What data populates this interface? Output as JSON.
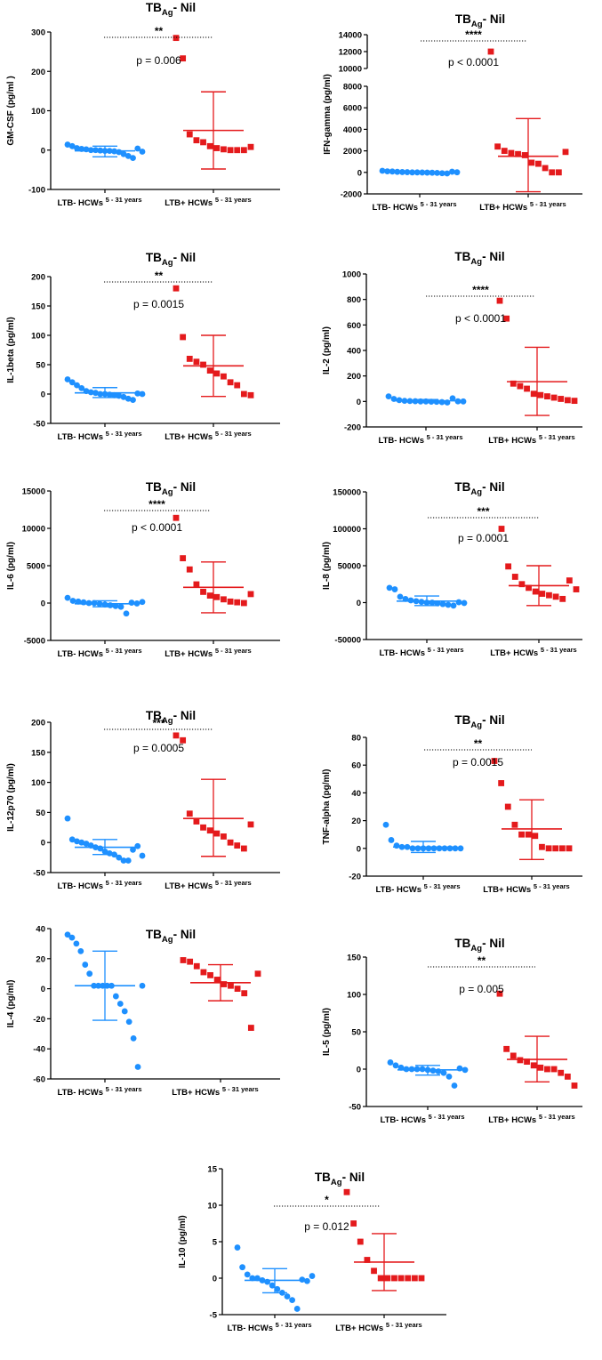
{
  "figure_group_label": "LTB- vs LTB+ HCWs cytokine panels",
  "colors": {
    "ltb_neg": "#1E90FF",
    "ltb_pos": "#E41A1C",
    "axis": "#000000"
  },
  "chart_data": [
    {
      "type": "scatter",
      "title": "TB",
      "title_sub": "Ag",
      "title_suffix": "- Nil",
      "ylabel": "GM-CSF (pg/ml )",
      "ylim": [
        -100,
        300
      ],
      "yticks": [
        -100,
        0,
        100,
        200,
        300
      ],
      "stars": "**",
      "p_text": "p = 0.006",
      "groups": [
        {
          "label": "LTB- HCWs",
          "sup": "5 - 31 years",
          "marker": "circle",
          "mean": -2,
          "sd_low": -17,
          "sd_high": 10,
          "points": [
            14,
            10,
            5,
            3,
            2,
            0,
            0,
            -1,
            -2,
            -2,
            -3,
            -5,
            -10,
            -15,
            -20,
            4,
            -4
          ]
        },
        {
          "label": "LTB+ HCWs",
          "sup": "5 - 31 years",
          "marker": "square",
          "mean": 50,
          "sd_low": -48,
          "sd_high": 148,
          "points": [
            285,
            233,
            40,
            25,
            20,
            10,
            5,
            2,
            0,
            0,
            0,
            8
          ]
        }
      ]
    },
    {
      "type": "scatter",
      "title": "TB",
      "title_sub": "Ag",
      "title_suffix": "- Nil",
      "ylabel": "IFN-gamma (pg/ml)",
      "ylim": [
        -2000,
        14000
      ],
      "yticks": [
        -2000,
        0,
        2000,
        4000,
        6000,
        8000,
        10000,
        12000,
        14000
      ],
      "axis_break": true,
      "stars": "****",
      "p_text": "p < 0.0001",
      "groups": [
        {
          "label": "LTB- HCWs",
          "sup": "5 - 31 years",
          "marker": "circle",
          "mean": 20,
          "sd_low": -60,
          "sd_high": 100,
          "points": [
            150,
            100,
            80,
            50,
            30,
            20,
            0,
            0,
            -10,
            -20,
            -30,
            -50,
            -80,
            -100,
            60,
            10
          ]
        },
        {
          "label": "LTB+ HCWs",
          "sup": "5 - 31 years",
          "marker": "square",
          "mean": 1500,
          "sd_low": -1800,
          "sd_high": 5000,
          "points": [
            12000,
            2400,
            2000,
            1800,
            1700,
            1600,
            900,
            800,
            400,
            0,
            0,
            1900
          ]
        }
      ]
    },
    {
      "type": "scatter",
      "title": "TB",
      "title_sub": "Ag",
      "title_suffix": "- Nil",
      "ylabel": "IL-1beta (pg/ml)",
      "ylim": [
        -50,
        200
      ],
      "yticks": [
        -50,
        0,
        50,
        100,
        150,
        200
      ],
      "stars": "**",
      "p_text": "p = 0.0015",
      "groups": [
        {
          "label": "LTB- HCWs",
          "sup": "5 - 31 years",
          "marker": "circle",
          "mean": 2,
          "sd_low": -6,
          "sd_high": 11,
          "points": [
            25,
            20,
            15,
            10,
            5,
            3,
            2,
            0,
            0,
            -1,
            -2,
            -3,
            -5,
            -8,
            -10,
            1,
            0
          ]
        },
        {
          "label": "LTB+ HCWs",
          "sup": "5 - 31 years",
          "marker": "square",
          "mean": 48,
          "sd_low": -4,
          "sd_high": 100,
          "points": [
            180,
            97,
            60,
            55,
            50,
            40,
            35,
            30,
            20,
            15,
            0,
            -2
          ]
        }
      ]
    },
    {
      "type": "scatter",
      "title": "TB",
      "title_sub": "Ag",
      "title_suffix": "- Nil",
      "ylabel": "IL-2 (pg/ml)",
      "ylim": [
        -200,
        1000
      ],
      "yticks": [
        -200,
        0,
        200,
        400,
        600,
        800,
        1000
      ],
      "stars": "****",
      "p_text": "p < 0.0001",
      "groups": [
        {
          "label": "LTB- HCWs",
          "sup": "5 - 31 years",
          "marker": "circle",
          "mean": 5,
          "sd_low": -5,
          "sd_high": 15,
          "points": [
            40,
            20,
            10,
            5,
            3,
            2,
            0,
            0,
            -2,
            -3,
            -5,
            -8,
            25,
            1,
            0
          ]
        },
        {
          "label": "LTB+ HCWs",
          "sup": "5 - 31 years",
          "marker": "square",
          "mean": 155,
          "sd_low": -110,
          "sd_high": 425,
          "points": [
            790,
            650,
            140,
            120,
            100,
            60,
            50,
            40,
            30,
            20,
            10,
            5
          ]
        }
      ]
    },
    {
      "type": "scatter",
      "title": "TB",
      "title_sub": "Ag",
      "title_suffix": "- Nil",
      "ylabel": "IL-6 (pg/ml)",
      "ylim": [
        -5000,
        15000
      ],
      "yticks": [
        -5000,
        0,
        5000,
        10000,
        15000
      ],
      "stars": "****",
      "p_text": "p < 0.0001",
      "groups": [
        {
          "label": "LTB- HCWs",
          "sup": "5 - 31 years",
          "marker": "circle",
          "mean": -100,
          "sd_low": -500,
          "sd_high": 300,
          "points": [
            700,
            300,
            200,
            100,
            0,
            0,
            -100,
            -200,
            -300,
            -400,
            -500,
            -1400,
            50,
            -50,
            150
          ]
        },
        {
          "label": "LTB+ HCWs",
          "sup": "5 - 31 years",
          "marker": "square",
          "mean": 2100,
          "sd_low": -1300,
          "sd_high": 5500,
          "points": [
            11400,
            6000,
            4500,
            2500,
            1500,
            1000,
            800,
            500,
            200,
            100,
            0,
            1200
          ]
        }
      ]
    },
    {
      "type": "scatter",
      "title": "TB",
      "title_sub": "Ag",
      "title_suffix": "- Nil",
      "ylabel": "IL-8 (pg/ml)",
      "ylim": [
        -50000,
        150000
      ],
      "yticks": [
        -50000,
        0,
        50000,
        100000,
        150000
      ],
      "stars": "***",
      "p_text": "p = 0.0001",
      "groups": [
        {
          "label": "LTB- HCWs",
          "sup": "5 - 31 years",
          "marker": "circle",
          "mean": 2000,
          "sd_low": -4000,
          "sd_high": 9000,
          "points": [
            20000,
            18000,
            8000,
            5000,
            3000,
            2000,
            1000,
            0,
            0,
            -1000,
            -2000,
            -3000,
            -4000,
            500,
            -500
          ]
        },
        {
          "label": "LTB+ HCWs",
          "sup": "5 - 31 years",
          "marker": "square",
          "mean": 23000,
          "sd_low": -4000,
          "sd_high": 50000,
          "points": [
            100000,
            49000,
            35000,
            25000,
            20000,
            15000,
            12000,
            10000,
            8000,
            5000,
            30000,
            18000
          ]
        }
      ]
    },
    {
      "type": "scatter",
      "title": "TB",
      "title_sub": "Ag",
      "title_suffix": "- Nil",
      "ylabel": "IL-12p70 (pg/ml)",
      "ylim": [
        -50,
        200
      ],
      "yticks": [
        -50,
        0,
        50,
        100,
        150,
        200
      ],
      "stars": "***",
      "p_text": "p = 0.0005",
      "groups": [
        {
          "label": "LTB- HCWs",
          "sup": "5 - 31 years",
          "marker": "circle",
          "mean": -8,
          "sd_low": -20,
          "sd_high": 5,
          "points": [
            40,
            5,
            2,
            0,
            -2,
            -5,
            -8,
            -10,
            -15,
            -18,
            -20,
            -25,
            -30,
            -30,
            -12,
            -6,
            -22
          ]
        },
        {
          "label": "LTB+ HCWs",
          "sup": "5 - 31 years",
          "marker": "square",
          "mean": 40,
          "sd_low": -23,
          "sd_high": 105,
          "points": [
            178,
            170,
            48,
            35,
            25,
            20,
            15,
            10,
            0,
            -5,
            -10,
            30
          ]
        }
      ]
    },
    {
      "type": "scatter",
      "title": "TB",
      "title_sub": "Ag",
      "title_suffix": "- Nil",
      "ylabel": "TNF-alpha (pg/ml)",
      "ylim": [
        -20,
        80
      ],
      "yticks": [
        -20,
        0,
        20,
        40,
        60,
        80
      ],
      "stars": "**",
      "p_text": "p = 0.0015",
      "groups": [
        {
          "label": "LTB- HCWs",
          "sup": "5 - 31 years",
          "marker": "circle",
          "mean": 1,
          "sd_low": -3,
          "sd_high": 5,
          "points": [
            17,
            6,
            2,
            1,
            1,
            0,
            0,
            0,
            0,
            0,
            0,
            0,
            0,
            0,
            0
          ]
        },
        {
          "label": "LTB+ HCWs",
          "sup": "5 - 31 years",
          "marker": "square",
          "mean": 14,
          "sd_low": -8,
          "sd_high": 35,
          "points": [
            63,
            47,
            30,
            17,
            10,
            10,
            9,
            1,
            0,
            0,
            0,
            0
          ]
        }
      ]
    },
    {
      "type": "scatter",
      "title": "TB",
      "title_sub": "Ag",
      "title_suffix": "- Nil",
      "ylabel": "IL-4 (pg/ml)",
      "ylim": [
        -60,
        40
      ],
      "yticks": [
        -60,
        -40,
        -20,
        0,
        20,
        40
      ],
      "stars": "",
      "p_text": "",
      "groups": [
        {
          "label": "LTB- HCWs",
          "sup": "5 - 31 years",
          "marker": "circle",
          "mean": 2,
          "sd_low": -21,
          "sd_high": 25,
          "points": [
            36,
            34,
            30,
            25,
            16,
            10,
            2,
            2,
            2,
            2,
            2,
            -5,
            -10,
            -15,
            -22,
            -33,
            -52,
            2
          ]
        },
        {
          "label": "LTB+ HCWs",
          "sup": "5 - 31 years",
          "marker": "square",
          "mean": 4,
          "sd_low": -8,
          "sd_high": 16,
          "points": [
            19,
            18,
            15,
            11,
            9,
            6,
            3,
            2,
            0,
            -3,
            -26,
            10
          ]
        }
      ]
    },
    {
      "type": "scatter",
      "title": "TB",
      "title_sub": "Ag",
      "title_suffix": "- Nil",
      "ylabel": "IL-5 (pg/ml)",
      "ylim": [
        -50,
        150
      ],
      "yticks": [
        -50,
        0,
        50,
        100,
        150
      ],
      "stars": "**",
      "p_text": "p = 0.005",
      "groups": [
        {
          "label": "LTB- HCWs",
          "sup": "5 - 31 years",
          "marker": "circle",
          "mean": -1,
          "sd_low": -8,
          "sd_high": 5,
          "points": [
            9,
            5,
            2,
            0,
            0,
            0,
            0,
            -1,
            -2,
            -3,
            -5,
            -10,
            -22,
            1,
            -1
          ]
        },
        {
          "label": "LTB+ HCWs",
          "sup": "5 - 31 years",
          "marker": "square",
          "mean": 13,
          "sd_low": -17,
          "sd_high": 44,
          "points": [
            101,
            27,
            18,
            12,
            10,
            5,
            2,
            0,
            0,
            -5,
            -10,
            -22
          ]
        }
      ]
    },
    {
      "type": "scatter",
      "title": "TB",
      "title_sub": "Ag",
      "title_suffix": "- Nil",
      "ylabel": "IL-10 (pg/ml)",
      "ylim": [
        -5,
        15
      ],
      "yticks": [
        -5,
        0,
        5,
        10,
        15
      ],
      "stars": "*",
      "p_text": "p = 0.012",
      "groups": [
        {
          "label": "LTB- HCWs",
          "sup": "5 - 31 years",
          "marker": "circle",
          "mean": -0.3,
          "sd_low": -2,
          "sd_high": 1.3,
          "points": [
            4.2,
            1.5,
            0.5,
            0,
            0,
            -0.3,
            -0.5,
            -1,
            -1.5,
            -2,
            -2.5,
            -3,
            -4.2,
            -0.2,
            -0.4,
            0.3
          ]
        },
        {
          "label": "LTB+ HCWs",
          "sup": "5 - 31 years",
          "marker": "square",
          "mean": 2.2,
          "sd_low": -1.7,
          "sd_high": 6.1,
          "points": [
            11.8,
            7.5,
            5,
            2.5,
            1,
            0,
            0,
            0,
            0,
            0,
            0,
            0
          ]
        }
      ]
    }
  ]
}
